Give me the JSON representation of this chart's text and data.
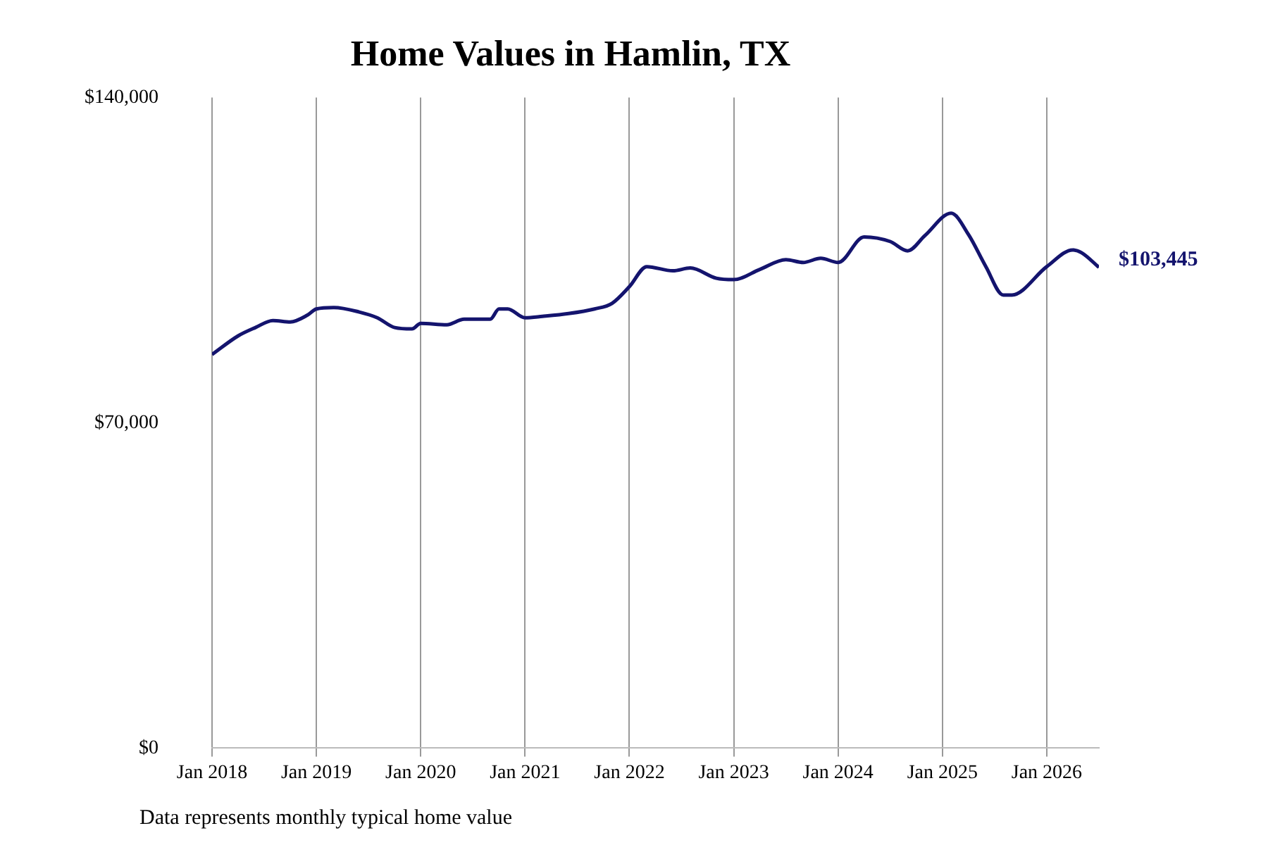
{
  "chart_data": {
    "type": "line",
    "title": "Home Values in Hamlin, TX",
    "x": [
      "2018-01",
      "2018-04",
      "2018-06",
      "2018-08",
      "2018-10",
      "2018-12",
      "2019-01",
      "2019-03",
      "2019-06",
      "2019-08",
      "2019-10",
      "2019-12",
      "2020-01",
      "2020-04",
      "2020-06",
      "2020-09",
      "2020-10",
      "2020-11",
      "2021-01",
      "2021-03",
      "2021-06",
      "2021-09",
      "2021-11",
      "2022-01",
      "2022-03",
      "2022-06",
      "2022-08",
      "2022-11",
      "2023-01",
      "2023-04",
      "2023-07",
      "2023-09",
      "2023-11",
      "2024-01",
      "2024-04",
      "2024-07",
      "2024-09",
      "2024-11",
      "2025-02",
      "2025-04",
      "2025-06",
      "2025-08",
      "2025-09",
      "2026-01",
      "2026-04",
      "2026-05",
      "2026-07"
    ],
    "series": [
      {
        "color": "#14146e",
        "values": [
          84700,
          88700,
          90500,
          92000,
          91700,
          93200,
          94500,
          94800,
          93800,
          92600,
          90500,
          90200,
          91400,
          91100,
          92300,
          92300,
          94500,
          94500,
          92600,
          92900,
          93500,
          94500,
          95700,
          99300,
          103600,
          102700,
          103300,
          101100,
          100800,
          103000,
          105100,
          104500,
          105400,
          104500,
          110000,
          109000,
          107000,
          110300,
          115100,
          110500,
          103600,
          97500,
          97500,
          103600,
          107200,
          106600,
          103445
        ]
      }
    ],
    "xticks": [
      {
        "value": "2018-01",
        "label": "Jan 2018"
      },
      {
        "value": "2019-01",
        "label": "Jan 2019"
      },
      {
        "value": "2020-01",
        "label": "Jan 2020"
      },
      {
        "value": "2021-01",
        "label": "Jan 2021"
      },
      {
        "value": "2022-01",
        "label": "Jan 2022"
      },
      {
        "value": "2023-01",
        "label": "Jan 2023"
      },
      {
        "value": "2024-01",
        "label": "Jan 2024"
      },
      {
        "value": "2025-01",
        "label": "Jan 2025"
      },
      {
        "value": "2026-01",
        "label": "Jan 2026"
      }
    ],
    "xlim": [
      "2018-01",
      "2026-07"
    ],
    "ylim": [
      0,
      140000
    ],
    "yticks": [
      {
        "value": 0,
        "label": "$0"
      },
      {
        "value": 70000,
        "label": "$70,000"
      },
      {
        "value": 140000,
        "label": "$140,000"
      }
    ],
    "grid": "x",
    "legend": false,
    "marker": "none",
    "line_style": "solid",
    "annotations": [
      {
        "text": "$103,445",
        "x": "2026-07",
        "y": 103445
      },
      "Data represents monthly typical home value"
    ]
  }
}
